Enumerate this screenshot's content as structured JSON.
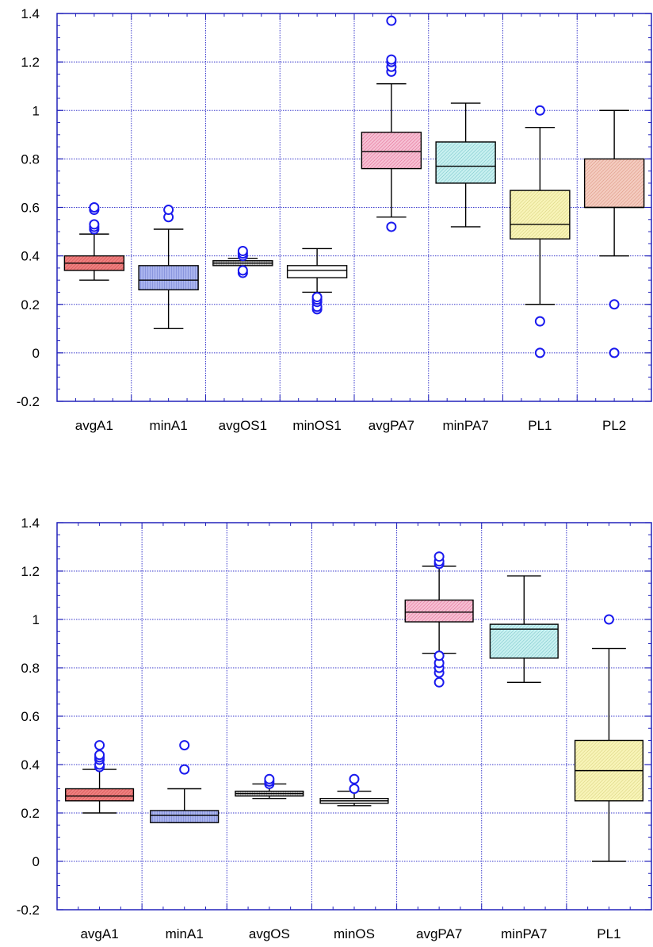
{
  "colors": {
    "axis": "#2222bb",
    "grid": "#3a3acc",
    "whisker": "#000000",
    "outlier": "#1a1aee"
  },
  "chart_data": [
    {
      "type": "box",
      "ylim": [
        -0.2,
        1.4
      ],
      "yticks": [
        "-0.2",
        "0",
        "0.2",
        "0.4",
        "0.6",
        "0.8",
        "1",
        "1.2",
        "1.4"
      ],
      "grid": true,
      "categories": [
        "avgA1",
        "minA1",
        "avgOS1",
        "minOS1",
        "avgPA7",
        "minPA7",
        "PL1",
        "PL2"
      ],
      "boxes": [
        {
          "name": "avgA1",
          "whisker_low": 0.3,
          "q1": 0.34,
          "median": 0.37,
          "q3": 0.4,
          "whisker_high": 0.49,
          "outliers": [
            0.51,
            0.52,
            0.53,
            0.59,
            0.6
          ],
          "fill": "#ee8080"
        },
        {
          "name": "minA1",
          "whisker_low": 0.1,
          "q1": 0.26,
          "median": 0.3,
          "q3": 0.36,
          "whisker_high": 0.51,
          "outliers": [
            0.56,
            0.59
          ],
          "fill": "#aab4ee"
        },
        {
          "name": "avgOS1",
          "whisker_low": 0.36,
          "q1": 0.36,
          "median": 0.37,
          "q3": 0.38,
          "whisker_high": 0.39,
          "outliers": [
            0.33,
            0.34,
            0.4,
            0.41,
            0.42
          ],
          "fill": "#c8c8c8"
        },
        {
          "name": "minOS1",
          "whisker_low": 0.25,
          "q1": 0.31,
          "median": 0.34,
          "q3": 0.36,
          "whisker_high": 0.43,
          "outliers": [
            0.18,
            0.19,
            0.21,
            0.22,
            0.23
          ],
          "fill": "#ffffff"
        },
        {
          "name": "avgPA7",
          "whisker_low": 0.56,
          "q1": 0.76,
          "median": 0.83,
          "q3": 0.91,
          "whisker_high": 1.11,
          "outliers": [
            0.52,
            1.16,
            1.18,
            1.2,
            1.21,
            1.37
          ],
          "fill": "#f6c0d4"
        },
        {
          "name": "minPA7",
          "whisker_low": 0.52,
          "q1": 0.7,
          "median": 0.77,
          "q3": 0.87,
          "whisker_high": 1.03,
          "outliers": [],
          "fill": "#c8f0f0"
        },
        {
          "name": "PL1",
          "whisker_low": 0.2,
          "q1": 0.47,
          "median": 0.53,
          "q3": 0.67,
          "whisker_high": 0.93,
          "outliers": [
            0.0,
            0.13,
            1.0
          ],
          "fill": "#f8f4b8"
        },
        {
          "name": "PL2",
          "whisker_low": 0.4,
          "q1": 0.6,
          "median": 0.6,
          "q3": 0.8,
          "whisker_high": 1.0,
          "outliers": [
            0.0,
            0.2
          ],
          "fill": "#f4ccc0"
        }
      ]
    },
    {
      "type": "box",
      "ylim": [
        -0.2,
        1.4
      ],
      "yticks": [
        "-0.2",
        "0",
        "0.2",
        "0.4",
        "0.6",
        "0.8",
        "1",
        "1.2",
        "1.4"
      ],
      "grid": true,
      "categories": [
        "avgA1",
        "minA1",
        "avgOS",
        "minOS",
        "avgPA7",
        "minPA7",
        "PL1"
      ],
      "boxes": [
        {
          "name": "avgA1",
          "whisker_low": 0.2,
          "q1": 0.25,
          "median": 0.27,
          "q3": 0.3,
          "whisker_high": 0.38,
          "outliers": [
            0.39,
            0.4,
            0.42,
            0.43,
            0.44,
            0.48
          ],
          "fill": "#ee8080"
        },
        {
          "name": "minA1",
          "whisker_low": 0.16,
          "q1": 0.16,
          "median": 0.19,
          "q3": 0.21,
          "whisker_high": 0.3,
          "outliers": [
            0.38,
            0.48
          ],
          "fill": "#aab4ee"
        },
        {
          "name": "avgOS",
          "whisker_low": 0.26,
          "q1": 0.27,
          "median": 0.28,
          "q3": 0.29,
          "whisker_high": 0.32,
          "outliers": [
            0.32,
            0.33,
            0.34
          ],
          "fill": "#c8c8c8"
        },
        {
          "name": "minOS",
          "whisker_low": 0.23,
          "q1": 0.24,
          "median": 0.25,
          "q3": 0.26,
          "whisker_high": 0.29,
          "outliers": [
            0.3,
            0.34
          ],
          "fill": "#ffffff"
        },
        {
          "name": "avgPA7",
          "whisker_low": 0.86,
          "q1": 0.99,
          "median": 1.03,
          "q3": 1.08,
          "whisker_high": 1.22,
          "outliers": [
            0.74,
            0.78,
            0.8,
            0.82,
            0.85,
            1.23,
            1.24,
            1.26
          ],
          "fill": "#f6c0d4"
        },
        {
          "name": "minPA7",
          "whisker_low": 0.74,
          "q1": 0.84,
          "median": 0.96,
          "q3": 0.98,
          "whisker_high": 1.18,
          "outliers": [],
          "fill": "#c8f0f0"
        },
        {
          "name": "PL1",
          "whisker_low": 0.0,
          "q1": 0.25,
          "median": 0.375,
          "q3": 0.5,
          "whisker_high": 0.88,
          "outliers": [
            1.0
          ],
          "fill": "#f8f4b8"
        }
      ]
    }
  ]
}
